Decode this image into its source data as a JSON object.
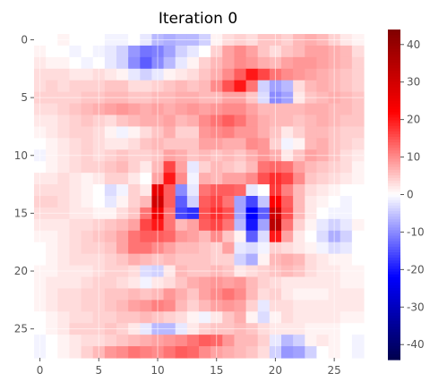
{
  "chart_data": {
    "type": "heatmap",
    "title": "Iteration 0",
    "xlabel": "",
    "ylabel": "",
    "grid": true,
    "shape": [
      28,
      28
    ],
    "x_ticks": [
      0,
      5,
      10,
      15,
      20,
      25
    ],
    "y_ticks": [
      0,
      5,
      10,
      15,
      20,
      25
    ],
    "colormap": "seismic",
    "color_range": [
      -44,
      44
    ],
    "colorbar_ticks": [
      40,
      30,
      20,
      10,
      0,
      -10,
      -20,
      -30,
      -40
    ],
    "values": [
      [
        0,
        0,
        1,
        0,
        0,
        0,
        -1,
        -1,
        0,
        -2,
        -6,
        -7,
        -6,
        -6,
        -4,
        1,
        3,
        4,
        3,
        5,
        5,
        4,
        6,
        7,
        6,
        4,
        2,
        1
      ],
      [
        1,
        0,
        0,
        -1,
        0,
        -1,
        -2,
        -4,
        -9,
        -12,
        -11,
        -8,
        -4,
        -2,
        0,
        4,
        8,
        10,
        8,
        5,
        3,
        5,
        6,
        8,
        8,
        7,
        6,
        3
      ],
      [
        2,
        1,
        1,
        0,
        -1,
        0,
        -2,
        -4,
        -10,
        -14,
        -10,
        -6,
        -2,
        1,
        4,
        6,
        8,
        10,
        9,
        7,
        6,
        8,
        9,
        9,
        8,
        7,
        6,
        4
      ],
      [
        3,
        3,
        3,
        2,
        2,
        3,
        2,
        1,
        -2,
        -4,
        -2,
        1,
        2,
        3,
        5,
        7,
        10,
        14,
        20,
        16,
        12,
        10,
        9,
        8,
        7,
        6,
        5,
        4
      ],
      [
        3,
        4,
        3,
        4,
        4,
        4,
        5,
        5,
        3,
        3,
        4,
        5,
        6,
        5,
        6,
        10,
        15,
        20,
        12,
        -4,
        -8,
        -6,
        3,
        6,
        7,
        6,
        5,
        4
      ],
      [
        4,
        4,
        4,
        4,
        5,
        5,
        6,
        6,
        5,
        5,
        6,
        6,
        7,
        7,
        6,
        6,
        8,
        8,
        5,
        -3,
        -10,
        -8,
        2,
        5,
        6,
        7,
        6,
        5
      ],
      [
        3,
        3,
        4,
        5,
        6,
        7,
        8,
        9,
        8,
        7,
        8,
        7,
        8,
        9,
        8,
        9,
        10,
        10,
        8,
        6,
        6,
        6,
        6,
        7,
        7,
        6,
        6,
        5
      ],
      [
        2,
        2,
        3,
        4,
        5,
        4,
        3,
        5,
        6,
        7,
        7,
        8,
        6,
        7,
        10,
        12,
        14,
        12,
        9,
        7,
        6,
        6,
        5,
        6,
        7,
        6,
        5,
        5
      ],
      [
        1,
        2,
        3,
        4,
        4,
        3,
        1,
        -1,
        1,
        3,
        5,
        7,
        4,
        4,
        9,
        10,
        11,
        9,
        9,
        7,
        5,
        2,
        4,
        6,
        6,
        5,
        4,
        4
      ],
      [
        0,
        1,
        2,
        3,
        4,
        3,
        2,
        2,
        3,
        5,
        6,
        5,
        5,
        5,
        8,
        8,
        7,
        7,
        10,
        9,
        4,
        -1,
        1,
        6,
        7,
        5,
        4,
        3
      ],
      [
        -1,
        1,
        2,
        3,
        4,
        3,
        4,
        5,
        4,
        4,
        5,
        8,
        7,
        5,
        6,
        5,
        6,
        5,
        7,
        9,
        7,
        2,
        5,
        8,
        7,
        5,
        3,
        2
      ],
      [
        0,
        1,
        2,
        3,
        4,
        4,
        5,
        6,
        4,
        2,
        6,
        16,
        8,
        -2,
        4,
        6,
        5,
        4,
        6,
        12,
        13,
        12,
        8,
        6,
        5,
        4,
        3,
        1
      ],
      [
        2,
        2,
        3,
        2,
        1,
        2,
        4,
        4,
        2,
        0,
        8,
        20,
        10,
        -1,
        7,
        6,
        8,
        8,
        10,
        15,
        18,
        16,
        10,
        5,
        4,
        3,
        2,
        1
      ],
      [
        3,
        3,
        3,
        2,
        1,
        0,
        -3,
        -1,
        4,
        2,
        26,
        14,
        -10,
        -2,
        12,
        14,
        14,
        13,
        -2,
        0,
        17,
        11,
        6,
        3,
        2,
        1,
        0,
        0
      ],
      [
        4,
        4,
        3,
        2,
        1,
        0,
        -2,
        1,
        4,
        6,
        30,
        14,
        -14,
        -4,
        14,
        16,
        12,
        -8,
        -16,
        -5,
        22,
        14,
        6,
        2,
        1,
        0,
        -1,
        0
      ],
      [
        3,
        3,
        3,
        2,
        2,
        1,
        1,
        3,
        5,
        12,
        24,
        12,
        -16,
        -18,
        15,
        18,
        15,
        -8,
        -22,
        -14,
        30,
        15,
        6,
        2,
        0,
        -1,
        -1,
        0
      ],
      [
        2,
        2,
        2,
        3,
        3,
        4,
        5,
        6,
        8,
        16,
        20,
        12,
        6,
        8,
        14,
        16,
        12,
        -6,
        -20,
        -8,
        34,
        12,
        4,
        1,
        -2,
        -4,
        -2,
        1
      ],
      [
        1,
        1,
        2,
        3,
        4,
        5,
        6,
        8,
        12,
        14,
        14,
        13,
        9,
        8,
        6,
        10,
        5,
        1,
        -14,
        -3,
        20,
        8,
        2,
        0,
        -3,
        -7,
        -4,
        0
      ],
      [
        0,
        1,
        2,
        3,
        4,
        4,
        5,
        8,
        12,
        12,
        10,
        8,
        6,
        6,
        5,
        4,
        8,
        -2,
        -3,
        -1,
        4,
        3,
        2,
        1,
        -1,
        -3,
        -2,
        0
      ],
      [
        0,
        1,
        2,
        3,
        3,
        3,
        4,
        5,
        7,
        6,
        5,
        6,
        5,
        5,
        5,
        4,
        4,
        -4,
        -7,
        1,
        6,
        7,
        6,
        3,
        2,
        1,
        1,
        0
      ],
      [
        1,
        1,
        2,
        2,
        2,
        3,
        4,
        4,
        3,
        -3,
        -4,
        2,
        6,
        5,
        5,
        6,
        5,
        2,
        3,
        4,
        5,
        6,
        5,
        3,
        2,
        2,
        1,
        1
      ],
      [
        1,
        2,
        2,
        2,
        3,
        4,
        4,
        3,
        2,
        -1,
        2,
        3,
        5,
        7,
        8,
        9,
        8,
        9,
        6,
        4,
        3,
        2,
        2,
        2,
        2,
        2,
        1,
        1
      ],
      [
        1,
        2,
        3,
        3,
        4,
        4,
        5,
        5,
        6,
        5,
        6,
        9,
        7,
        5,
        8,
        10,
        12,
        10,
        6,
        3,
        4,
        2,
        1,
        1,
        1,
        2,
        2,
        2
      ],
      [
        1,
        2,
        3,
        3,
        4,
        4,
        5,
        6,
        8,
        9,
        11,
        10,
        6,
        4,
        6,
        8,
        9,
        8,
        4,
        -2,
        3,
        3,
        2,
        2,
        2,
        2,
        2,
        2
      ],
      [
        0,
        1,
        2,
        3,
        3,
        4,
        4,
        5,
        5,
        6,
        5,
        4,
        3,
        1,
        -1,
        2,
        5,
        7,
        1,
        -3,
        1,
        3,
        2,
        2,
        2,
        2,
        1,
        1
      ],
      [
        0,
        1,
        2,
        4,
        4,
        4,
        5,
        4,
        2,
        -2,
        -6,
        -6,
        -2,
        2,
        4,
        5,
        5,
        6,
        5,
        3,
        2,
        2,
        2,
        1,
        1,
        1,
        0,
        0
      ],
      [
        -1,
        0,
        1,
        2,
        3,
        3,
        4,
        5,
        6,
        7,
        8,
        9,
        10,
        12,
        14,
        13,
        9,
        6,
        6,
        4,
        -2,
        -6,
        -4,
        1,
        2,
        1,
        0,
        -1
      ],
      [
        -1,
        0,
        1,
        2,
        4,
        6,
        9,
        10,
        12,
        11,
        10,
        12,
        14,
        13,
        10,
        8,
        7,
        6,
        5,
        3,
        -4,
        -9,
        -8,
        -4,
        0,
        1,
        0,
        -1
      ]
    ]
  }
}
